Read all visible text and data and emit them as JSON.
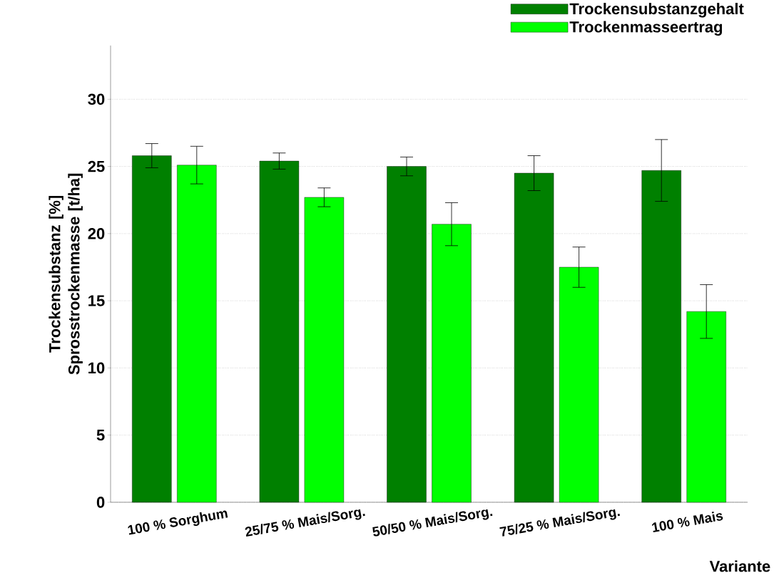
{
  "chart_data": {
    "type": "bar",
    "xlabel": "Variante",
    "ylabel": "Trockensubstanz [%] Sprosstrockenmasse [t/ha]",
    "categories": [
      "100 % Sorghum",
      "25/75 % Mais/Sorg.",
      "50/50 % Mais/Sorg.",
      "75/25 % Mais/Sorg.",
      "100 % Mais"
    ],
    "series": [
      {
        "name": "Trockensubstanzgehalt",
        "color": "#008000",
        "values": [
          25.8,
          25.4,
          25.0,
          24.5,
          24.7
        ],
        "errors": [
          0.9,
          0.6,
          0.7,
          1.3,
          2.3
        ]
      },
      {
        "name": "Trockenmasseertrag",
        "color": "#00ff00",
        "values": [
          25.1,
          22.7,
          20.7,
          17.5,
          14.2
        ],
        "errors": [
          1.4,
          0.7,
          1.6,
          1.5,
          2.0
        ]
      }
    ],
    "ylim": [
      0,
      34
    ],
    "yticks": [
      0,
      5,
      10,
      15,
      20,
      25,
      30
    ],
    "grid": "y",
    "legend": "top right"
  }
}
